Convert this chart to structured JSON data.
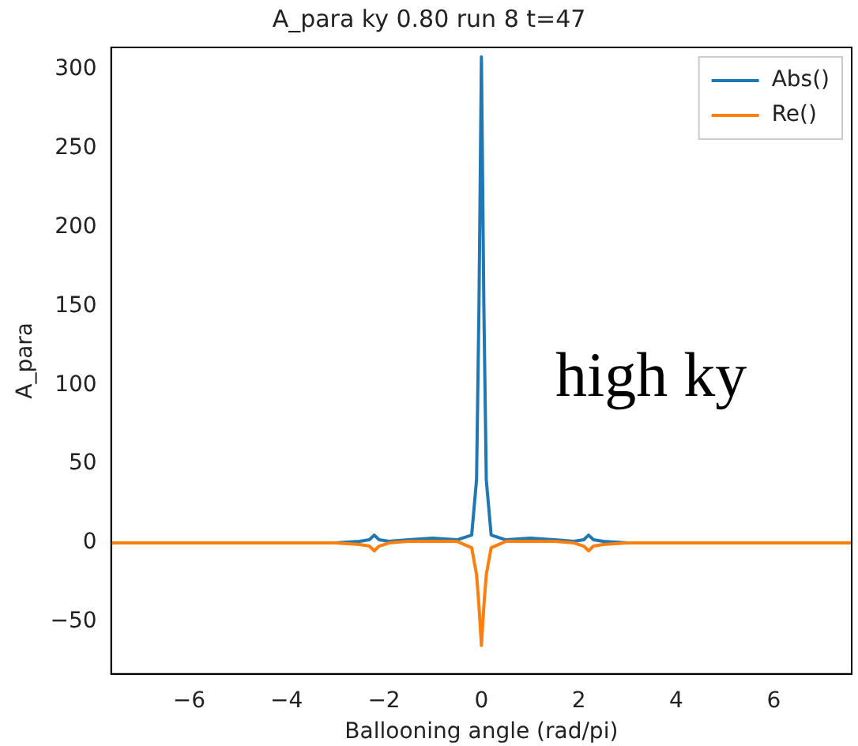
{
  "chart_data": {
    "type": "line",
    "title": "A_para ky 0.80 run 8 t=47",
    "xlabel": "Ballooning angle (rad/pi)",
    "ylabel": "A_para",
    "annotations": [
      "high ky"
    ],
    "x": [
      -7.6,
      -6,
      -4,
      -3,
      -2.5,
      -2.3,
      -2.2,
      -2.1,
      -1.9,
      -1.5,
      -1,
      -0.5,
      -0.2,
      -0.1,
      -0.05,
      0,
      0.05,
      0.1,
      0.2,
      0.5,
      1,
      1.5,
      1.9,
      2.1,
      2.2,
      2.3,
      2.5,
      3,
      4,
      6,
      7.6
    ],
    "series": [
      {
        "name": "Abs()",
        "color": "#1f77b4",
        "values": [
          null,
          null,
          0,
          0,
          1,
          2,
          5,
          2,
          1,
          2,
          3,
          2,
          5,
          40,
          150,
          308,
          150,
          40,
          5,
          2,
          3,
          2,
          1,
          2,
          5,
          2,
          1,
          0,
          0,
          null,
          null
        ]
      },
      {
        "name": "Re()",
        "color": "#ff7f0e",
        "values": [
          0,
          0,
          0,
          0,
          -1,
          -2,
          -5,
          -2,
          0,
          1,
          1,
          1,
          -3,
          -20,
          -40,
          -65,
          -40,
          -20,
          -3,
          1,
          1,
          1,
          0,
          -2,
          -5,
          -2,
          -1,
          0,
          0,
          0,
          0
        ]
      }
    ],
    "xlim": [
      -7.6,
      7.6
    ],
    "ylim": [
      -83,
      314
    ],
    "xticks": [
      -6,
      -4,
      -2,
      0,
      2,
      4,
      6
    ],
    "yticks": [
      -50,
      0,
      50,
      100,
      150,
      200,
      250,
      300
    ],
    "legend": "top right",
    "grid": false,
    "marker": "none",
    "line_style": "solid"
  }
}
